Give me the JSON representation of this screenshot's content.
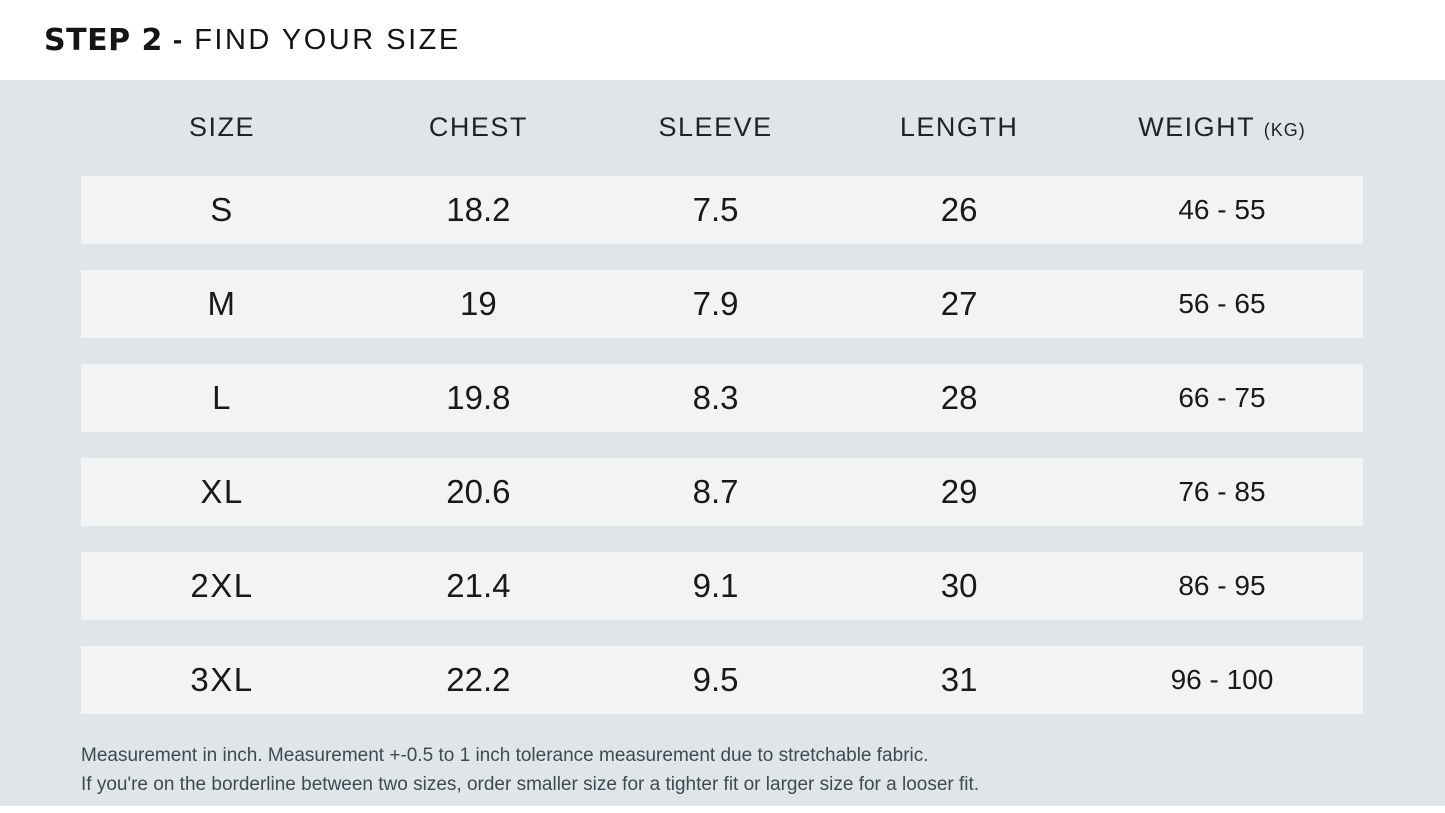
{
  "chart_data": {
    "type": "table",
    "title": "STEP 2 - FIND YOUR SIZE",
    "columns": [
      "SIZE",
      "CHEST",
      "SLEEVE",
      "LENGTH",
      "WEIGHT (KG)"
    ],
    "rows": [
      [
        "S",
        "18.2",
        "7.5",
        "26",
        "46 - 55"
      ],
      [
        "M",
        "19",
        "7.9",
        "27",
        "56 - 65"
      ],
      [
        "L",
        "19.8",
        "8.3",
        "28",
        "66 - 75"
      ],
      [
        "XL",
        "20.6",
        "8.7",
        "29",
        "76 - 85"
      ],
      [
        "2XL",
        "21.4",
        "9.1",
        "30",
        "86 - 95"
      ],
      [
        "3XL",
        "22.2",
        "9.5",
        "31",
        "96 - 100"
      ]
    ],
    "notes": [
      "Measurement in inch. Measurement +-0.5 to 1 inch tolerance measurement due to stretchable fabric.",
      "If you're on the borderline between two sizes, order smaller size for a tighter fit or larger size for a looser fit."
    ]
  },
  "header": {
    "step_label": "STEP 2",
    "separator": "-",
    "title": "FIND YOUR SIZE"
  },
  "table": {
    "columns": {
      "size": "SIZE",
      "chest": "CHEST",
      "sleeve": "SLEEVE",
      "length": "LENGTH",
      "weight": "WEIGHT",
      "weight_unit": "(KG)"
    },
    "rows": [
      {
        "size": "S",
        "chest": "18.2",
        "sleeve": "7.5",
        "length": "26",
        "weight": "46 - 55"
      },
      {
        "size": "M",
        "chest": "19",
        "sleeve": "7.9",
        "length": "27",
        "weight": "56 - 65"
      },
      {
        "size": "L",
        "chest": "19.8",
        "sleeve": "8.3",
        "length": "28",
        "weight": "66 - 75"
      },
      {
        "size": "XL",
        "chest": "20.6",
        "sleeve": "8.7",
        "length": "29",
        "weight": "76 - 85"
      },
      {
        "size": "2XL",
        "chest": "21.4",
        "sleeve": "9.1",
        "length": "30",
        "weight": "86 - 95"
      },
      {
        "size": "3XL",
        "chest": "22.2",
        "sleeve": "9.5",
        "length": "31",
        "weight": "96 - 100"
      }
    ]
  },
  "notes": {
    "line1": "Measurement in inch. Measurement +-0.5 to 1 inch tolerance measurement due to stretchable fabric.",
    "line2": "If you're on the borderline between two sizes, order smaller size for a tighter fit or larger size for a looser fit."
  },
  "colors": {
    "page_background": "#ffffff",
    "panel_background": "#e0e6e8",
    "row_background": "#f1f3f4",
    "title_text": "#141414",
    "table_text": "#17191b",
    "note_text": "#3c4a52"
  }
}
